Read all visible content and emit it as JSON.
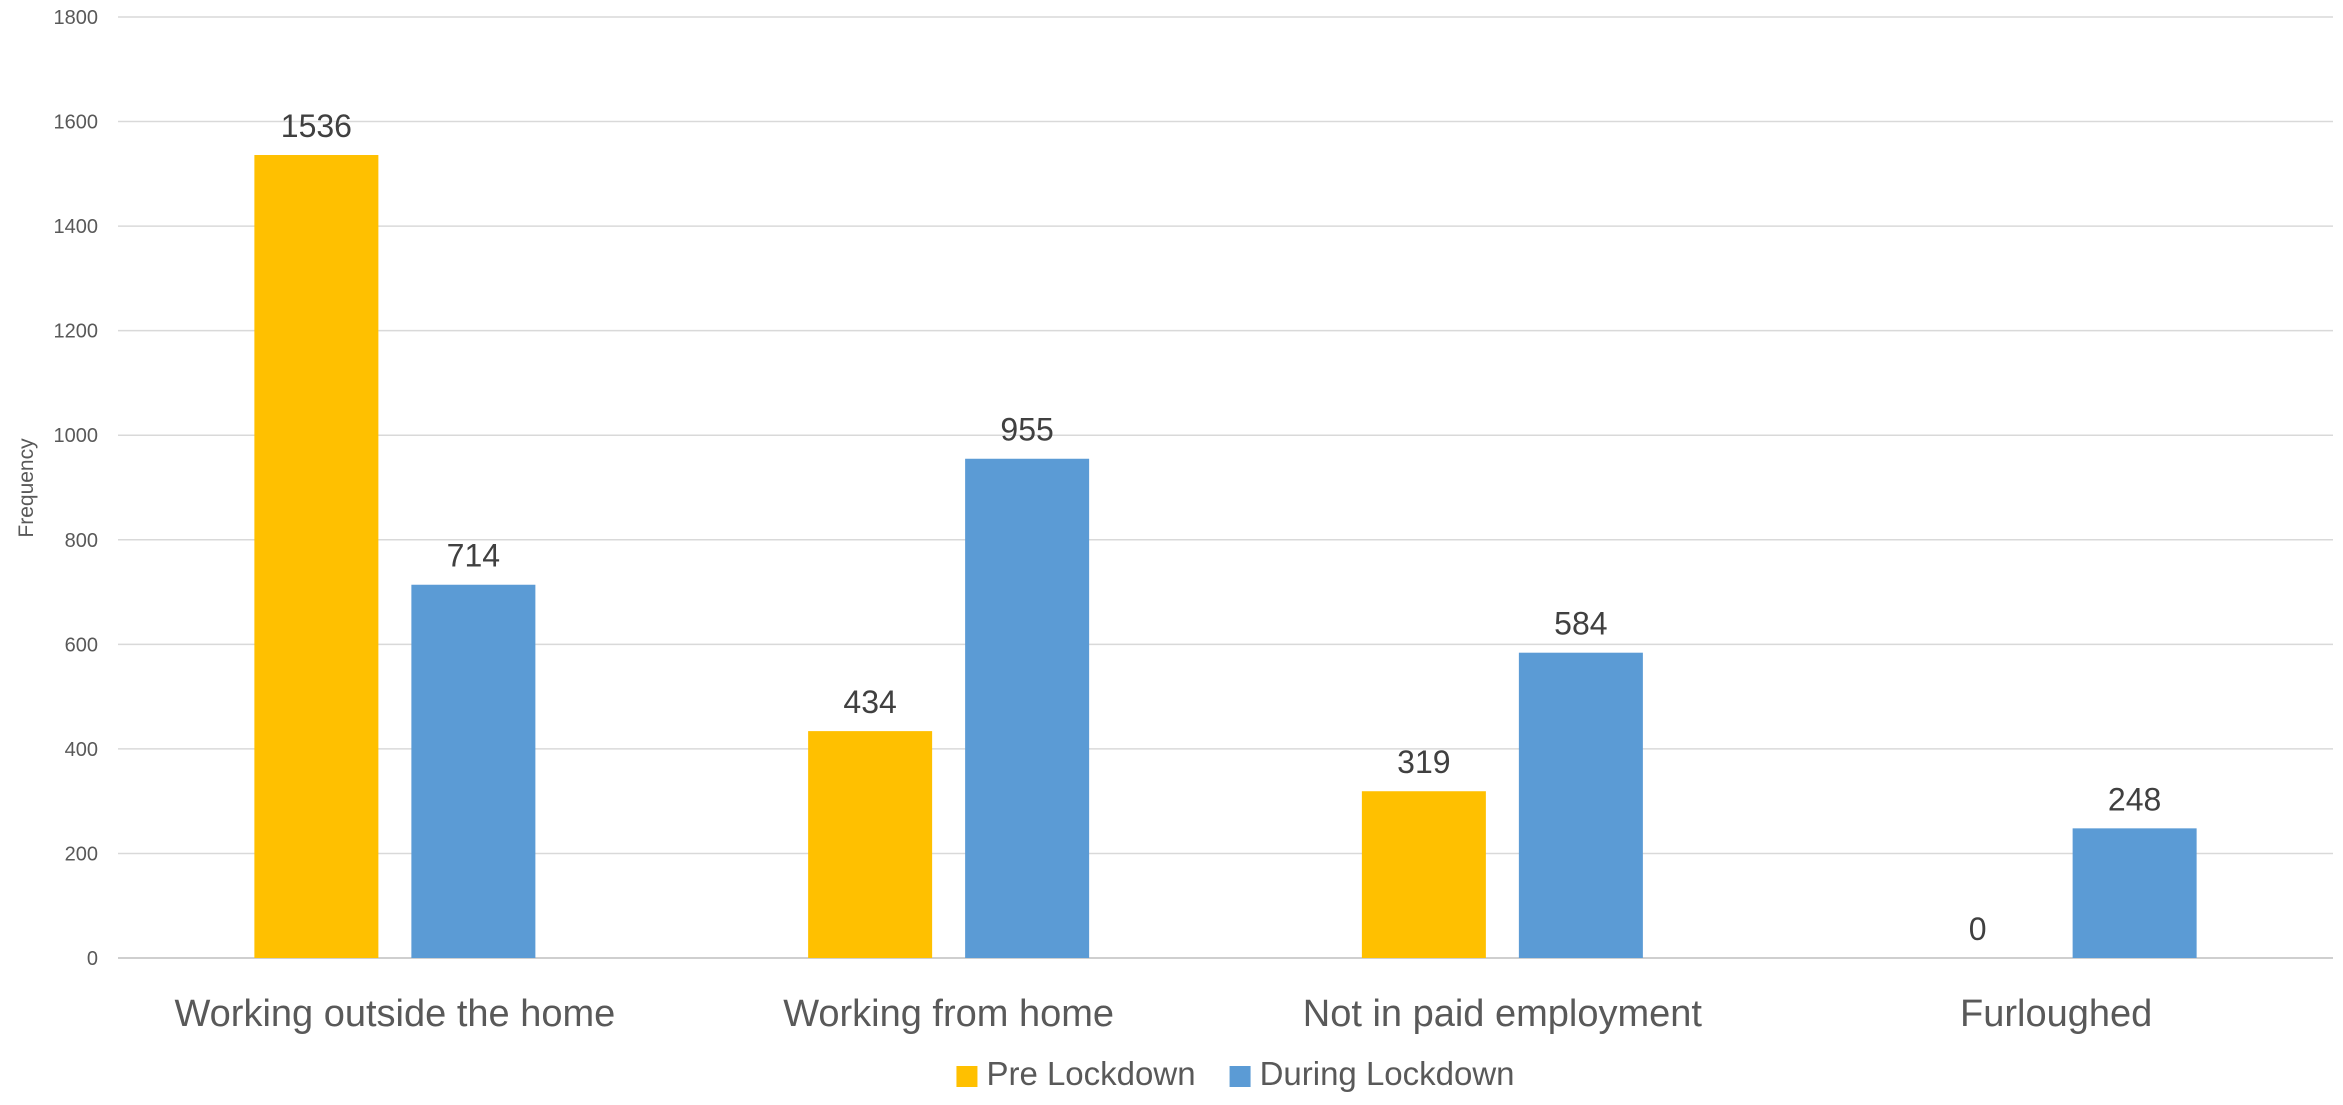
{
  "chart_data": {
    "type": "bar",
    "title": "",
    "xlabel": "",
    "ylabel": "Frequency",
    "ylim": [
      0,
      1800
    ],
    "yticks": [
      0,
      200,
      400,
      600,
      800,
      1000,
      1200,
      1400,
      1600,
      1800
    ],
    "grid": true,
    "legend_position": "bottom",
    "categories": [
      "Working outside the home",
      "Working from home",
      "Not in paid employment",
      "Furloughed"
    ],
    "series": [
      {
        "name": "Pre Lockdown",
        "color": "#FFC000",
        "values": [
          1536,
          434,
          319,
          0
        ]
      },
      {
        "name": "During Lockdown",
        "color": "#5B9BD5",
        "values": [
          714,
          955,
          584,
          248
        ]
      }
    ],
    "data_labels": true
  }
}
